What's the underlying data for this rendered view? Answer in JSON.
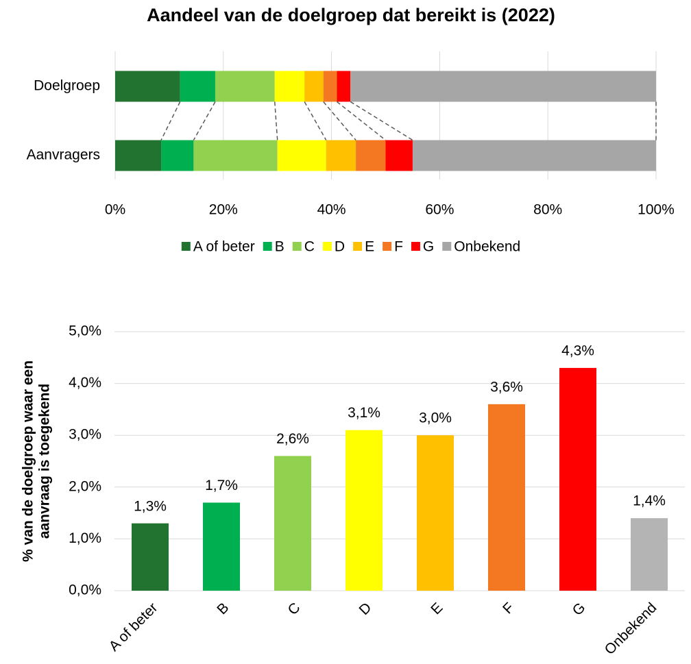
{
  "chart_data": [
    {
      "type": "barh",
      "title": "Aandeel van de doelgroep dat bereikt is (2022)",
      "categories": [
        "Doelgroep",
        "Aanvragers"
      ],
      "series": [
        {
          "name": "A of beter",
          "color": "#237330",
          "values": [
            12,
            8.5
          ]
        },
        {
          "name": "B",
          "color": "#00b050",
          "values": [
            6.5,
            6
          ]
        },
        {
          "name": "C",
          "color": "#92d050",
          "values": [
            11,
            15.5
          ]
        },
        {
          "name": "D",
          "color": "#ffff00",
          "values": [
            5.5,
            9
          ]
        },
        {
          "name": "E",
          "color": "#ffc000",
          "values": [
            3.5,
            5.5
          ]
        },
        {
          "name": "F",
          "color": "#f47721",
          "values": [
            2.5,
            5.5
          ]
        },
        {
          "name": "G",
          "color": "#ff0000",
          "values": [
            2.5,
            5
          ]
        },
        {
          "name": "Onbekend",
          "color": "#a6a6a6",
          "values": [
            56.5,
            45
          ]
        }
      ],
      "stacked": true,
      "xlim": [
        0,
        100
      ],
      "xticks": [
        {
          "value": 0,
          "label": "0%"
        },
        {
          "value": 20,
          "label": "20%"
        },
        {
          "value": 40,
          "label": "40%"
        },
        {
          "value": 60,
          "label": "60%"
        },
        {
          "value": 80,
          "label": "80%"
        },
        {
          "value": 100,
          "label": "100%"
        }
      ],
      "grid": true,
      "legend": "bottom"
    },
    {
      "type": "bar",
      "ylabel": [
        "% van de doelgroep waar een",
        "aanvraag is toegekend"
      ],
      "categories": [
        "A of beter",
        "B",
        "C",
        "D",
        "E",
        "F",
        "G",
        "Onbekend"
      ],
      "values": [
        1.3,
        1.7,
        2.6,
        3.1,
        3.0,
        3.6,
        4.3,
        1.4
      ],
      "value_labels": [
        "1,3%",
        "1,7%",
        "2,6%",
        "3,1%",
        "3,0%",
        "3,6%",
        "4,3%",
        "1,4%"
      ],
      "colors": [
        "#237330",
        "#00b050",
        "#92d050",
        "#ffff00",
        "#ffc000",
        "#f47721",
        "#ff0000",
        "#b4b4b4"
      ],
      "ylim": [
        0,
        5
      ],
      "yticks": [
        {
          "value": 0,
          "label": "0,0%"
        },
        {
          "value": 1,
          "label": "1,0%"
        },
        {
          "value": 2,
          "label": "2,0%"
        },
        {
          "value": 3,
          "label": "3,0%"
        },
        {
          "value": 4,
          "label": "4,0%"
        },
        {
          "value": 5,
          "label": "5,0%"
        }
      ],
      "grid": true
    }
  ]
}
